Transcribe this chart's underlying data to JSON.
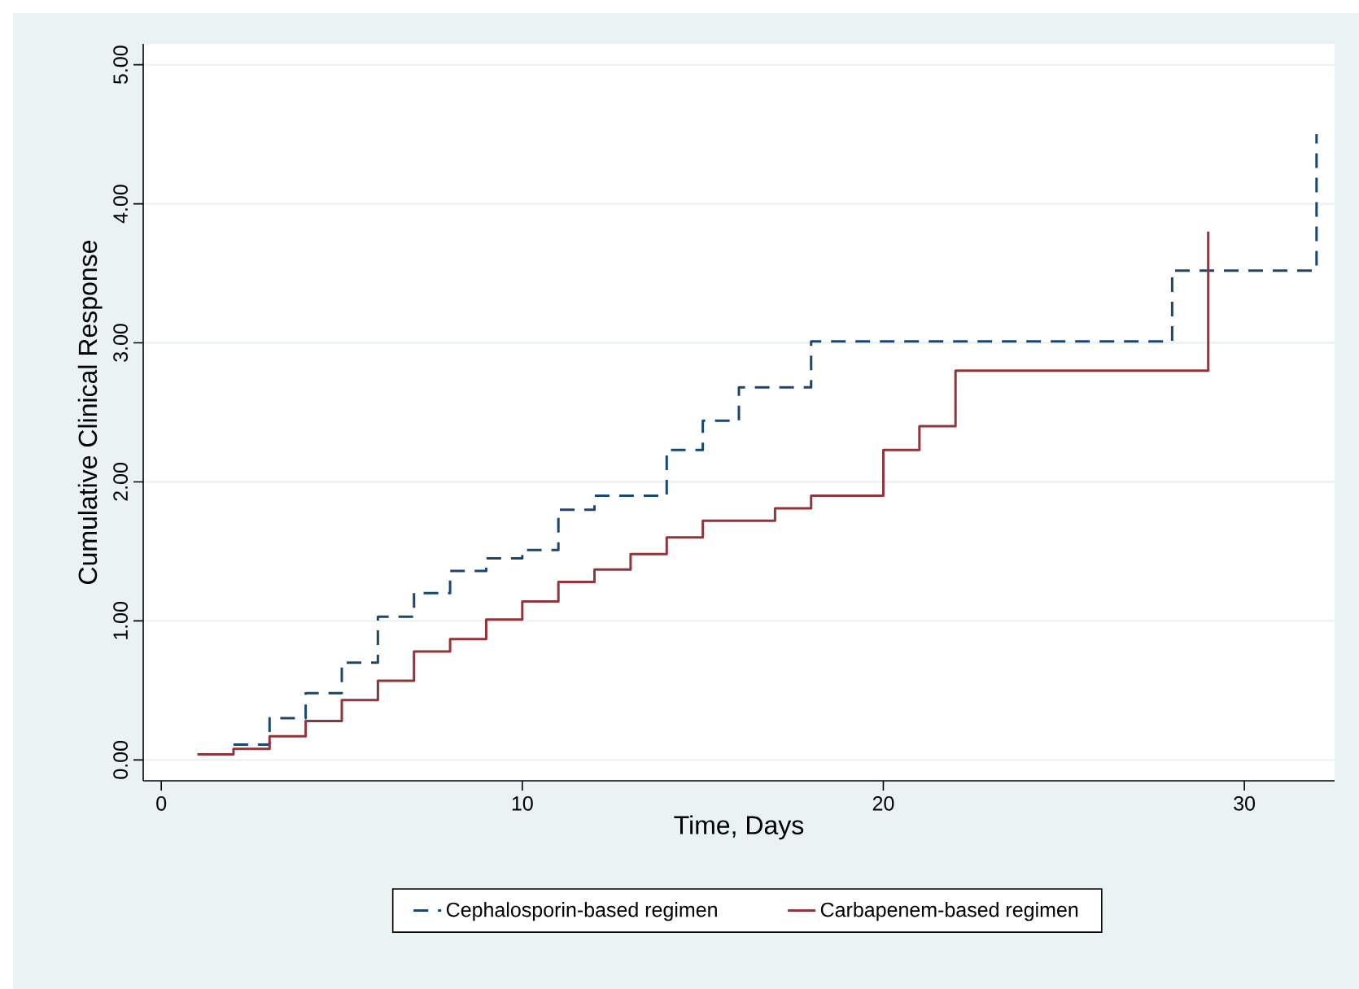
{
  "chart_data": {
    "type": "step",
    "xlabel": "Time, Days",
    "ylabel": "Cumulative Clinical Response",
    "xlim": [
      -0.5,
      32.5
    ],
    "ylim": [
      -0.15,
      5.15
    ],
    "xticks": [
      0,
      10,
      20,
      30
    ],
    "yticks": [
      {
        "value": 0,
        "label": "0.00"
      },
      {
        "value": 1,
        "label": "1.00"
      },
      {
        "value": 2,
        "label": "2.00"
      },
      {
        "value": 3,
        "label": "3.00"
      },
      {
        "value": 4,
        "label": "4.00"
      },
      {
        "value": 5,
        "label": "5.00"
      }
    ],
    "grid": "y",
    "legend": "bottom",
    "marker": "none",
    "series": [
      {
        "name": "Cephalosporin-based regimen",
        "color": "#1a476f",
        "line_style": "dashed",
        "x": [
          2,
          3,
          4,
          5,
          6,
          7,
          8,
          9,
          10,
          11,
          12,
          14,
          15,
          16,
          18,
          28,
          32
        ],
        "values": [
          0.11,
          0.3,
          0.48,
          0.7,
          1.03,
          1.2,
          1.36,
          1.45,
          1.51,
          1.8,
          1.9,
          2.23,
          2.44,
          2.68,
          3.01,
          3.52,
          4.5
        ]
      },
      {
        "name": "Carbapenem-based regimen",
        "color": "#90353b",
        "line_style": "solid",
        "x": [
          1,
          2,
          3,
          4,
          5,
          6,
          7,
          8,
          9,
          10,
          11,
          12,
          13,
          14,
          15,
          17,
          18,
          20,
          21,
          22,
          29
        ],
        "values": [
          0.04,
          0.08,
          0.17,
          0.28,
          0.43,
          0.57,
          0.78,
          0.87,
          1.01,
          1.14,
          1.28,
          1.37,
          1.48,
          1.6,
          1.72,
          1.81,
          1.9,
          2.23,
          2.4,
          2.8,
          3.8
        ]
      }
    ]
  }
}
